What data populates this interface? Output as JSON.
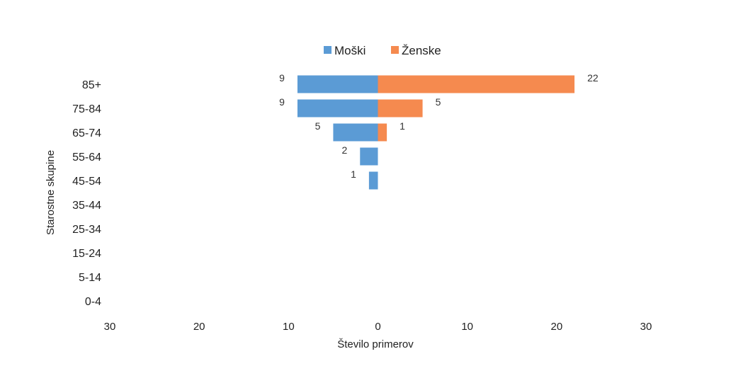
{
  "chart_data": {
    "type": "bar",
    "orientation": "horizontal",
    "style": "population-pyramid",
    "categories": [
      "85+",
      "75-84",
      "65-74",
      "55-64",
      "45-54",
      "35-44",
      "25-34",
      "15-24",
      "5-14",
      "0-4"
    ],
    "series": [
      {
        "name": "Moški",
        "side": "left",
        "color": "#5B9BD5",
        "values": [
          9,
          9,
          5,
          2,
          1,
          0,
          0,
          0,
          0,
          0
        ],
        "labels": [
          "9",
          "9",
          "5",
          "2",
          "1",
          "",
          "",
          "",
          "",
          ""
        ]
      },
      {
        "name": "Ženske",
        "side": "right",
        "color": "#F58A4F",
        "values": [
          22,
          5,
          1,
          0,
          0,
          0,
          0,
          0,
          0,
          0
        ],
        "labels": [
          "22",
          "5",
          "1",
          "",
          "",
          "",
          "",
          "",
          "",
          ""
        ]
      }
    ],
    "x_range": [
      -30,
      30
    ],
    "xticks": [
      -30,
      -20,
      -10,
      0,
      10,
      20,
      30
    ],
    "xtick_labels": [
      "30",
      "20",
      "10",
      "0",
      "10",
      "20",
      "30"
    ],
    "xlabel": "Število primerov",
    "ylabel": "Starostne skupine",
    "legend_position": "top",
    "grid": false
  }
}
